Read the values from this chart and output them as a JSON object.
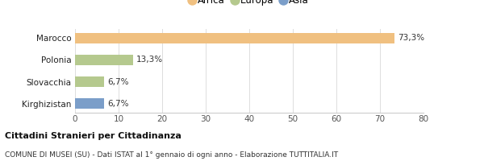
{
  "categories": [
    "Kirghizistan",
    "Slovacchia",
    "Polonia",
    "Marocco"
  ],
  "values": [
    6.7,
    6.7,
    13.3,
    73.3
  ],
  "bar_colors": [
    "#7b9ec9",
    "#b5c98e",
    "#b5c98e",
    "#f0c080"
  ],
  "labels": [
    "6,7%",
    "6,7%",
    "13,3%",
    "73,3%"
  ],
  "legend_entries": [
    "Africa",
    "Europa",
    "Asia"
  ],
  "legend_colors": [
    "#f0c080",
    "#b5c98e",
    "#7b9ec9"
  ],
  "xlim": [
    0,
    80
  ],
  "xticks": [
    0,
    10,
    20,
    30,
    40,
    50,
    60,
    70,
    80
  ],
  "title_bold": "Cittadini Stranieri per Cittadinanza",
  "subtitle": "COMUNE DI MUSEI (SU) - Dati ISTAT al 1° gennaio di ogni anno - Elaborazione TUTTITALIA.IT",
  "bg_color": "#ffffff",
  "bar_height": 0.5
}
